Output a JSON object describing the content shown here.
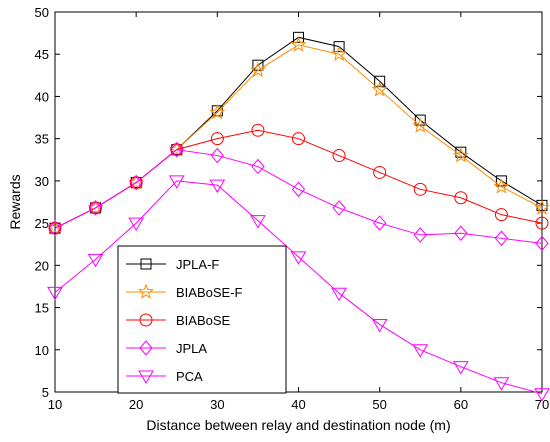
{
  "chart_data": {
    "type": "line",
    "xlabel": "Distance between relay and destination node (m)",
    "ylabel": "Rewards",
    "xlim": [
      10,
      70
    ],
    "ylim": [
      5,
      50
    ],
    "xticks": [
      "10",
      "20",
      "30",
      "40",
      "50",
      "60",
      "70"
    ],
    "yticks": [
      "5",
      "10",
      "15",
      "20",
      "25",
      "30",
      "35",
      "40",
      "45",
      "50"
    ],
    "grid": false,
    "legend_position": "lower-left",
    "x": [
      10,
      15,
      20,
      25,
      30,
      35,
      40,
      45,
      50,
      55,
      60,
      65,
      70
    ],
    "series": [
      {
        "name": "JPLA-F",
        "color": "#000000",
        "marker": "square",
        "values": [
          24.4,
          26.8,
          29.8,
          33.7,
          38.3,
          43.7,
          47.0,
          45.9,
          41.8,
          37.2,
          33.4,
          30.0,
          27.1
        ]
      },
      {
        "name": "BIABoSE-F",
        "color": "#ff8c00",
        "marker": "star",
        "values": [
          24.4,
          26.8,
          29.8,
          33.7,
          38.1,
          43.1,
          46.1,
          45.0,
          40.8,
          36.5,
          33.0,
          29.3,
          26.8
        ]
      },
      {
        "name": "BIABoSE",
        "color": "#ff0000",
        "marker": "circle",
        "values": [
          24.4,
          26.8,
          29.8,
          33.7,
          35.0,
          36.0,
          35.0,
          33.0,
          31.0,
          29.0,
          28.0,
          26.0,
          25.0
        ]
      },
      {
        "name": "JPLA",
        "color": "#ff00ff",
        "marker": "diamond",
        "values": [
          24.4,
          26.8,
          29.8,
          33.7,
          33.0,
          31.7,
          29.0,
          26.8,
          25.0,
          23.6,
          23.8,
          23.2,
          22.6
        ]
      },
      {
        "name": "PCA",
        "color": "#ff00ff",
        "marker": "triangle-down",
        "values": [
          16.8,
          20.7,
          25.0,
          30.0,
          29.5,
          25.3,
          21.0,
          16.7,
          13.0,
          10.0,
          8.0,
          6.1,
          4.8
        ]
      }
    ]
  }
}
